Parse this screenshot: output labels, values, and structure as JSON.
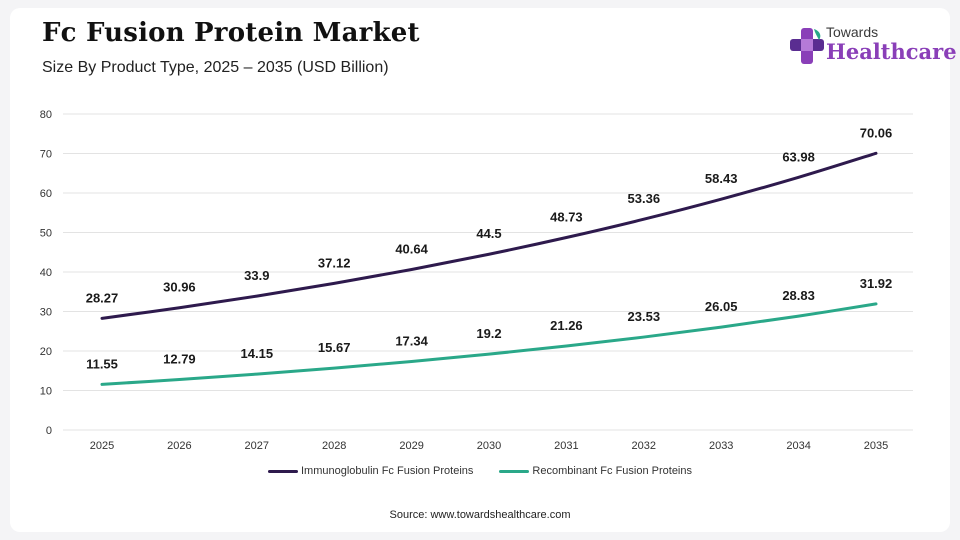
{
  "header": {
    "title": "Fc Fusion Protein Market",
    "subtitle": "Size By Product Type, 2025 – 2035 (USD Billion)"
  },
  "logo": {
    "line1": "Towards",
    "line2": "Healthcare",
    "icon": "medical-cross-icon",
    "colors": [
      "#8a3fb8",
      "#5a2d91",
      "#2aa889"
    ]
  },
  "source": "Source: www.towardshealthcare.com",
  "chart_data": {
    "type": "line",
    "title": "Fc Fusion Protein Market",
    "subtitle": "Size By Product Type, 2025 – 2035 (USD Billion)",
    "xlabel": "",
    "ylabel": "",
    "x": [
      "2025",
      "2026",
      "2027",
      "2028",
      "2029",
      "2030",
      "2031",
      "2032",
      "2033",
      "2034",
      "2035"
    ],
    "ylim": [
      0,
      80
    ],
    "yticks": [
      0,
      10,
      20,
      30,
      40,
      50,
      60,
      70,
      80
    ],
    "grid": true,
    "legend": "bottom",
    "series": [
      {
        "name": "Immunoglobulin Fc Fusion Proteins",
        "color": "#2e1a4d",
        "values": [
          28.27,
          30.96,
          33.9,
          37.12,
          40.64,
          44.5,
          48.73,
          53.36,
          58.43,
          63.98,
          70.06
        ],
        "labels": [
          "28.27",
          "30.96",
          "33.9",
          "37.12",
          "40.64",
          "44.5",
          "48.73",
          "53.36",
          "58.43",
          "63.98",
          "70.06"
        ]
      },
      {
        "name": "Recombinant Fc Fusion Proteins",
        "color": "#2aa889",
        "values": [
          11.55,
          12.79,
          14.15,
          15.67,
          17.34,
          19.2,
          21.26,
          23.53,
          26.05,
          28.83,
          31.92
        ],
        "labels": [
          "11.55",
          "12.79",
          "14.15",
          "15.67",
          "17.34",
          "19.2",
          "21.26",
          "23.53",
          "26.05",
          "28.83",
          "31.92"
        ]
      }
    ]
  }
}
